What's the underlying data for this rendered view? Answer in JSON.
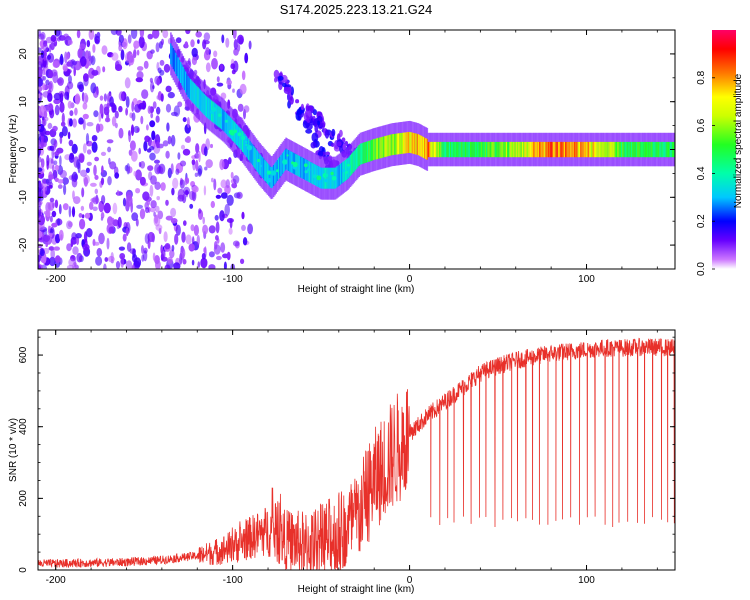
{
  "title": "S174.2025.223.13.21.G24",
  "chart_data": [
    {
      "type": "heatmap",
      "xlabel": "Height of straight line (km)",
      "ylabel": "Frequency (Hz)",
      "xlim": [
        -210,
        150
      ],
      "ylim": [
        -25,
        25
      ],
      "x_ticks": [
        -200,
        -100,
        0,
        100
      ],
      "x_tick_labels": [
        "-200",
        "-100",
        "0",
        "100"
      ],
      "y_ticks": [
        -20,
        -10,
        0,
        10,
        20
      ],
      "y_tick_labels": [
        "-20",
        "-10",
        "0",
        "10",
        "20"
      ],
      "colorbar": {
        "label": "Normalized spectral amplitude",
        "range": [
          0,
          1
        ],
        "ticks": [
          0.0,
          0.2,
          0.4,
          0.6,
          0.8
        ],
        "tick_labels": [
          "0.0",
          "0.2",
          "0.4",
          "0.6",
          "0.8"
        ]
      },
      "ridge": {
        "x": [
          -135,
          -125,
          -115,
          -105,
          -95,
          -85,
          -78,
          -70,
          -60,
          -50,
          -42,
          -35,
          -28,
          -20,
          -10,
          0,
          5,
          10,
          20,
          40,
          60,
          80,
          100,
          120,
          150
        ],
        "y": [
          20,
          13,
          9,
          6,
          2,
          -3,
          -6,
          -2,
          -4,
          -6,
          -6,
          -4,
          -1,
          0,
          1,
          1.5,
          1,
          0,
          0,
          0,
          0,
          0,
          0,
          0,
          0
        ],
        "amplitude": [
          0.25,
          0.3,
          0.35,
          0.3,
          0.35,
          0.3,
          0.3,
          0.3,
          0.3,
          0.35,
          0.3,
          0.35,
          0.45,
          0.55,
          0.6,
          0.7,
          0.75,
          0.8,
          0.45,
          0.5,
          0.6,
          0.85,
          0.75,
          0.5,
          0.45
        ]
      }
    },
    {
      "type": "line",
      "xlabel": "Height of straight line (km)",
      "ylabel": "SNR (10 * v/v)",
      "xlim": [
        -210,
        150
      ],
      "ylim": [
        0,
        670
      ],
      "x_ticks": [
        -200,
        -100,
        0,
        100
      ],
      "x_tick_labels": [
        "-200",
        "-100",
        "0",
        "100"
      ],
      "y_ticks": [
        0,
        200,
        400,
        600
      ],
      "y_tick_labels": [
        "0",
        "200",
        "400",
        "600"
      ],
      "series": [
        {
          "name": "SNR",
          "color": "#e8302a",
          "x": [
            -210,
            -200,
            -180,
            -160,
            -140,
            -120,
            -110,
            -100,
            -90,
            -80,
            -70,
            -60,
            -50,
            -40,
            -30,
            -20,
            -10,
            0,
            10,
            20,
            30,
            40,
            50,
            60,
            70,
            80,
            90,
            100,
            110,
            120,
            130,
            140,
            150
          ],
          "y": [
            18,
            18,
            20,
            22,
            28,
            40,
            50,
            65,
            90,
            110,
            85,
            70,
            80,
            100,
            140,
            250,
            320,
            380,
            430,
            470,
            510,
            550,
            570,
            585,
            595,
            605,
            610,
            615,
            620,
            620,
            622,
            622,
            620
          ],
          "noise_peaks": [
            {
              "x": -95,
              "y": 150
            },
            {
              "x": -75,
              "y": 250
            },
            {
              "x": -45,
              "y": 210
            },
            {
              "x": -25,
              "y": 400
            },
            {
              "x": -17,
              "y": 420
            }
          ],
          "dropout_floor": 120
        }
      ]
    }
  ]
}
